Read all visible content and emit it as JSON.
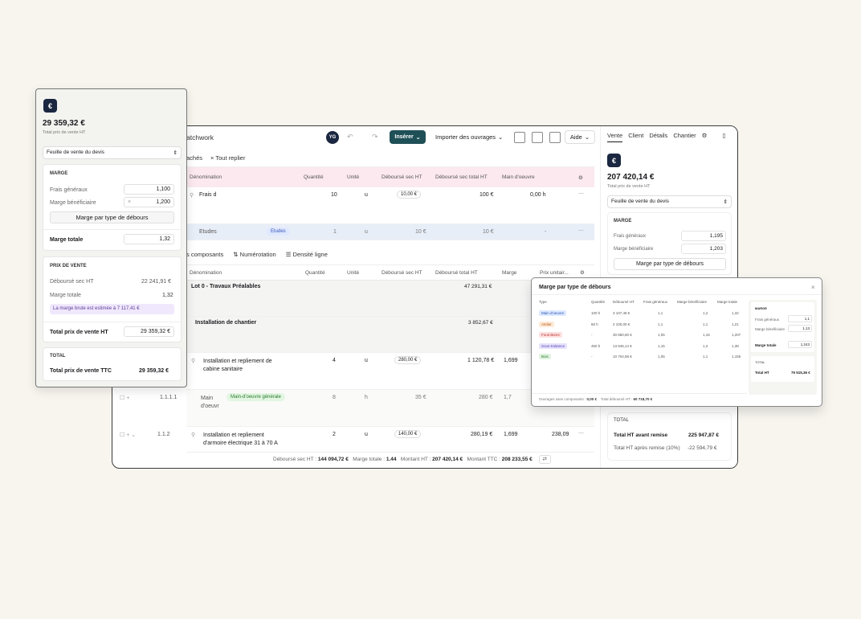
{
  "app": {
    "title": "atchwork",
    "avatar": "YG"
  },
  "topbar": {
    "insert_label": "Insérer",
    "import_label": "Importer des ouvrages",
    "help_label": "Aide"
  },
  "toolbar1": {
    "hidden_label": "achés",
    "collapse_label": "Tout replier"
  },
  "table1": {
    "headers": [
      "Dénomination",
      "Quantité",
      "Unité",
      "Déboursé sec HT",
      "Déboursé sec total HT",
      "Main d'oeuvre"
    ],
    "row1": {
      "name": "Frais d",
      "qty": "10",
      "unit": "u",
      "unit_cost": "10,00 €",
      "total": "100 €",
      "labor": "0,00 h"
    },
    "etudes": {
      "name": "Etudes",
      "tag": "Etudes",
      "qty": "1",
      "unit": "u",
      "unit_cost": "10 €",
      "total": "10 €",
      "labor": "-"
    }
  },
  "toolbar2": {
    "components_label": "s composants",
    "numbering_label": "Numérotation",
    "density_label": "Densité ligne"
  },
  "table2": {
    "headers": [
      "Dénomination",
      "Quantité",
      "Unité",
      "Déboursé sec HT",
      "Déboursé total HT",
      "Marge",
      "Prix unitair..."
    ],
    "lot": {
      "name": "Lot 0 - Travaux Préalables",
      "total": "47 291,31 €"
    },
    "install": {
      "name": "Installation de chantier",
      "total": "3 852,67 €"
    },
    "cabin": {
      "name_line1": "Installation et repliement de",
      "name_line2": "cabine sanitaire",
      "qty": "4",
      "unit": "u",
      "unit_cost": "280,00 €",
      "total": "1 120,78 €",
      "margin": "1,699"
    },
    "labor": {
      "num": "1.1.1.1",
      "name_line1": "Main",
      "name_line2": "d'oeuvr",
      "tag": "Main-d'oeuvre générale",
      "qty": "8",
      "unit": "h",
      "unit_cost": "35 €",
      "total": "280 €",
      "margin": "1,7"
    },
    "armoire": {
      "num": "1.1.2",
      "name_line1": "Installation et repliement",
      "name_line2": "d'armoire électrique 31 à 70 A",
      "qty": "2",
      "unit": "u",
      "unit_cost": "140,00 €",
      "total": "280,19 €",
      "margin": "1,699",
      "price": "238,09"
    }
  },
  "footer": {
    "debourse_label": "Déboursé sec HT :",
    "debourse_value": "144 094,72 €",
    "marge_label": "Marge totale :",
    "marge_value": "1.44",
    "montant_ht_label": "Montant HT :",
    "montant_ht_value": "207 420,14 €",
    "montant_ttc_label": "Montant TTC :",
    "montant_ttc_value": "208 233,55 €"
  },
  "right_panel": {
    "tabs": [
      "Vente",
      "Client",
      "Détails",
      "Chantier"
    ],
    "amount": "207 420,14 €",
    "amount_label": "Total prix de vente HT",
    "sheet_select": "Feuille de vente du devis",
    "marge_title": "MARGE",
    "frais_label": "Frais généraux",
    "frais_value": "1,195",
    "benef_label": "Marge bénéficiaire",
    "benef_value": "1,203",
    "type_button": "Marge par type de débours",
    "total_title": "TOTAL",
    "total_ht_label": "Total HT avant remise",
    "total_ht_value": "225 947,87 €",
    "total_remise_label": "Total HT après remise (10%)",
    "total_remise_value": "-22 594,79 €"
  },
  "left_panel": {
    "amount": "29 359,32 €",
    "amount_label": "Total prix de vente HT",
    "sheet_select": "Feuille de vente du devis",
    "marge_title": "MARGE",
    "frais_label": "Frais généraux",
    "frais_value": "1,100",
    "benef_label": "Marge bénéficiaire",
    "benef_value": "1,200",
    "type_button": "Marge par type de débours",
    "marge_totale_label": "Marge totale",
    "marge_totale_value": "1,32",
    "prix_title": "PRIX DE VENTE",
    "debourse_label": "Déboursé sec HT",
    "debourse_value": "22 241,91 €",
    "marge_totale2_label": "Marge totale",
    "marge_totale2_value": "1,32",
    "estimate_note": "La marge brute est estimée à 7 117,41 €",
    "total_ht_label": "Total prix de vente HT",
    "total_ht_value": "29 359,32 €",
    "total_title": "TOTAL",
    "total_ttc_label": "Total prix de vente TTC",
    "total_ttc_value": "29 359,32 €"
  },
  "modal": {
    "title": "Marge par type de débours",
    "headers": [
      "Type",
      "Quantité",
      "Déboursé HT",
      "Frais généraux",
      "Marge bénéficiaire",
      "Marge totale"
    ],
    "rows": [
      {
        "type": "Main d'oeuvre",
        "qty": "100 h",
        "cost": "3 107,48 €",
        "fg": "1,1",
        "mb": "1,2",
        "mt": "1,32",
        "bg": "#dde9ff",
        "fgc": "#2f56b0"
      },
      {
        "type": "Atelier",
        "qty": "60 h",
        "cost": "2 100,00 €",
        "fg": "1,1",
        "mb": "1,1",
        "mt": "1,21",
        "bg": "#fde9d6",
        "fgc": "#b85b1a"
      },
      {
        "type": "Fournitures",
        "qty": "-",
        "cost": "30 860,50 €",
        "fg": "1,05",
        "mb": "1,15",
        "mt": "1,207",
        "bg": "#fde0e0",
        "fgc": "#b83232"
      },
      {
        "type": "Sous-traitance",
        "qty": "450 h",
        "cost": "13 946,14 €",
        "fg": "1,15",
        "mb": "1,2",
        "mt": "1,38",
        "bg": "#e6e2fb",
        "fgc": "#5a43b8"
      },
      {
        "type": "Bois",
        "qty": "-",
        "cost": "10 704,58 €",
        "fg": "1,05",
        "mb": "1,1",
        "mt": "1,155",
        "bg": "#e0f4e0",
        "fgc": "#2c7a2c"
      }
    ],
    "footer_left_label": "Ouvrages sans composants :",
    "footer_left_value": "0,00 €",
    "footer_right_label": "Total déboursé HT :",
    "footer_right_value": "60 718,70 €",
    "side_marge_title": "MARGE",
    "side_frais_label": "Frais généraux",
    "side_frais_value": "1,1",
    "side_benef_label": "Marge bénéficiaire",
    "side_benef_value": "1,13",
    "side_total_label": "Marge totale",
    "side_total_value": "1,243",
    "side_total_title": "TOTAL",
    "side_total_ht_label": "Total HT",
    "side_total_ht_value": "75 515,36 €"
  },
  "colors": {
    "accent": "#1f4f57",
    "navy": "#1b2740",
    "pink_header": "#fbe9ef",
    "etudes_row": "#e8eef8"
  }
}
